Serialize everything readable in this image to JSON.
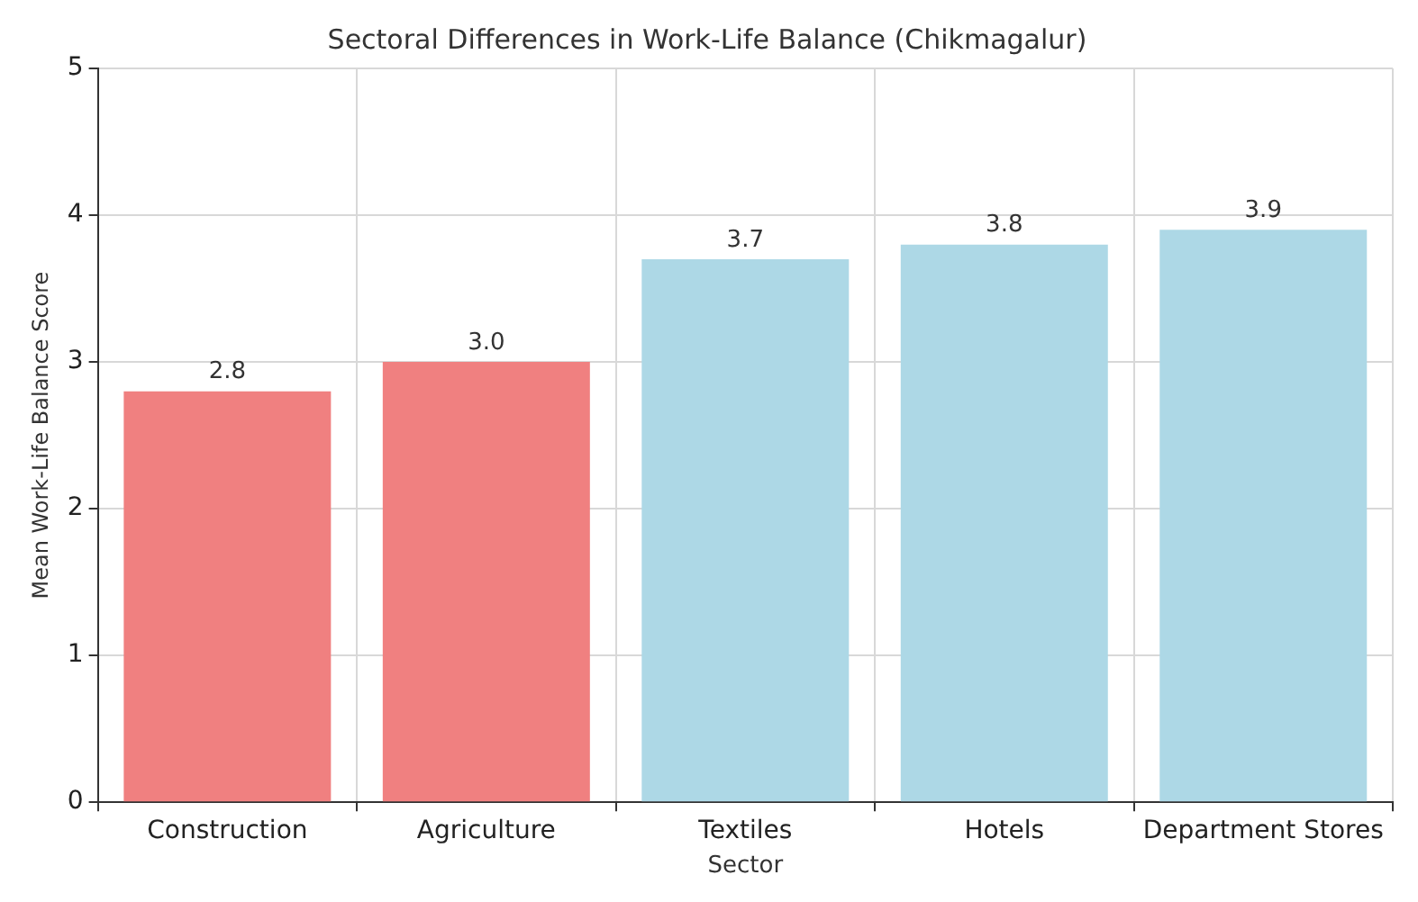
{
  "chart_data": {
    "type": "bar",
    "title": "Sectoral Differences in Work-Life Balance (Chikmagalur)",
    "xlabel": "Sector",
    "ylabel": "Mean Work-Life Balance Score",
    "categories": [
      "Construction",
      "Agriculture",
      "Textiles",
      "Hotels",
      "Department Stores"
    ],
    "values": [
      2.8,
      3.0,
      3.7,
      3.8,
      3.9
    ],
    "colors": [
      "#f08080",
      "#f08080",
      "#add8e6",
      "#add8e6",
      "#add8e6"
    ],
    "value_labels": [
      "2.8",
      "3.0",
      "3.7",
      "3.8",
      "3.9"
    ],
    "ylim": [
      0,
      5
    ],
    "yticks": [
      0,
      1,
      2,
      3,
      4,
      5
    ],
    "grid": true,
    "legend": false
  }
}
